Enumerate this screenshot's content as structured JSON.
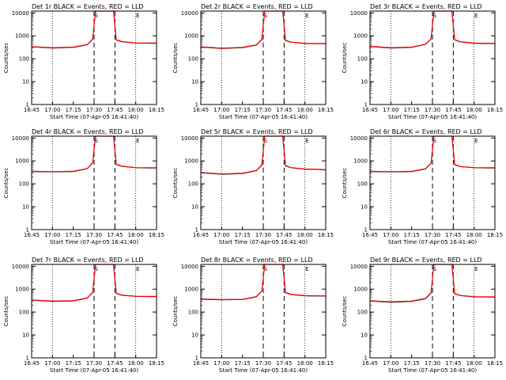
{
  "figure": {
    "background": "#ffffff",
    "colors": {
      "events": "#000000",
      "lld": "#ff0000",
      "axes": "#000000"
    }
  },
  "chart_data": [
    {
      "type": "line",
      "title": "Det 1r BLACK = Events, RED = LLD",
      "xlabel": "Start Time (07-Apr-05 16:41:40)",
      "ylabel": "Counts/sec",
      "yscale": "log",
      "ylim": [
        1,
        12000
      ],
      "xlim": [
        "16:45",
        "18:15"
      ],
      "x_ticks": [
        "16:45",
        "17:00",
        "17:15",
        "17:30",
        "17:45",
        "18:00",
        "18:15"
      ],
      "y_ticks": [
        "1",
        "10",
        "100",
        "1000",
        "10000"
      ],
      "grid": "dotted vertical lines at 17:00, 18:00",
      "markers": [
        {
          "label": "S",
          "at": "17:32"
        },
        {
          "label": "E",
          "at": "18:02"
        }
      ],
      "vlines_dashed": [
        "17:30",
        "17:45"
      ],
      "series": [
        {
          "name": "Events",
          "x": [
            "16:45",
            "17:00",
            "17:15",
            "17:25",
            "17:29",
            "17:31",
            "17:44",
            "17:46",
            "17:50",
            "18:00",
            "18:10",
            "18:15"
          ],
          "y": [
            330,
            290,
            310,
            400,
            700,
            12000,
            12000,
            650,
            550,
            480,
            470,
            470
          ]
        },
        {
          "name": "LLD",
          "x": [
            "16:45",
            "17:00",
            "17:15",
            "17:25",
            "17:29",
            "17:31",
            "17:44",
            "17:46",
            "17:50",
            "18:00",
            "18:10",
            "18:15"
          ],
          "y": [
            340,
            300,
            320,
            410,
            720,
            12000,
            12000,
            670,
            560,
            490,
            480,
            480
          ]
        }
      ]
    },
    {
      "type": "line",
      "title": "Det 2r BLACK = Events, RED = LLD",
      "xlabel": "Start Time (07-Apr-05 16:41:40)",
      "ylabel": "Counts/sec",
      "yscale": "log",
      "ylim": [
        1,
        12000
      ],
      "xlim": [
        "16:45",
        "18:15"
      ],
      "x_ticks": [
        "16:45",
        "17:00",
        "17:15",
        "17:30",
        "17:45",
        "18:00",
        "18:15"
      ],
      "y_ticks": [
        "1",
        "10",
        "100",
        "1000",
        "10000"
      ],
      "grid": "dotted vertical lines at 17:00, 18:00",
      "markers": [
        {
          "label": "S",
          "at": "17:32"
        },
        {
          "label": "E",
          "at": "18:02"
        }
      ],
      "vlines_dashed": [
        "17:30",
        "17:45"
      ],
      "series": [
        {
          "name": "Events",
          "x": [
            "16:45",
            "17:00",
            "17:15",
            "17:25",
            "17:29",
            "17:31",
            "17:44",
            "17:46",
            "17:50",
            "18:00",
            "18:10",
            "18:15"
          ],
          "y": [
            320,
            280,
            300,
            390,
            680,
            12000,
            12000,
            620,
            520,
            460,
            450,
            450
          ]
        },
        {
          "name": "LLD",
          "x": [
            "16:45",
            "17:00",
            "17:15",
            "17:25",
            "17:29",
            "17:31",
            "17:44",
            "17:46",
            "17:50",
            "18:00",
            "18:10",
            "18:15"
          ],
          "y": [
            330,
            290,
            310,
            400,
            700,
            12000,
            12000,
            640,
            530,
            470,
            460,
            460
          ]
        }
      ]
    },
    {
      "type": "line",
      "title": "Det 3r BLACK = Events, RED = LLD",
      "xlabel": "Start Time (07-Apr-05 16:41:40)",
      "ylabel": "Counts/sec",
      "yscale": "log",
      "ylim": [
        1,
        12000
      ],
      "xlim": [
        "16:45",
        "18:15"
      ],
      "x_ticks": [
        "16:45",
        "17:00",
        "17:15",
        "17:30",
        "17:45",
        "18:00",
        "18:15"
      ],
      "y_ticks": [
        "1",
        "10",
        "100",
        "1000",
        "10000"
      ],
      "grid": "dotted vertical lines at 17:00, 18:00",
      "markers": [
        {
          "label": "S",
          "at": "17:32"
        },
        {
          "label": "E",
          "at": "18:02"
        }
      ],
      "vlines_dashed": [
        "17:30",
        "17:45"
      ],
      "series": [
        {
          "name": "Events",
          "x": [
            "16:45",
            "17:00",
            "17:15",
            "17:25",
            "17:29",
            "17:31",
            "17:44",
            "17:46",
            "17:50",
            "18:00",
            "18:10",
            "18:15"
          ],
          "y": [
            340,
            290,
            310,
            420,
            720,
            12000,
            12000,
            660,
            540,
            470,
            460,
            460
          ]
        },
        {
          "name": "LLD",
          "x": [
            "16:45",
            "17:00",
            "17:15",
            "17:25",
            "17:29",
            "17:31",
            "17:44",
            "17:46",
            "17:50",
            "18:00",
            "18:10",
            "18:15"
          ],
          "y": [
            350,
            300,
            320,
            430,
            740,
            12000,
            12000,
            680,
            550,
            480,
            470,
            470
          ]
        }
      ]
    },
    {
      "type": "line",
      "title": "Det 4r BLACK = Events, RED = LLD",
      "xlabel": "Start Time (07-Apr-05 16:41:40)",
      "ylabel": "Counts/sec",
      "yscale": "log",
      "ylim": [
        1,
        12000
      ],
      "xlim": [
        "16:45",
        "18:15"
      ],
      "x_ticks": [
        "16:45",
        "17:00",
        "17:15",
        "17:30",
        "17:45",
        "18:00",
        "18:15"
      ],
      "y_ticks": [
        "1",
        "10",
        "100",
        "1000",
        "10000"
      ],
      "grid": "dotted vertical lines at 17:00, 18:00",
      "markers": [
        {
          "label": "S",
          "at": "17:32"
        },
        {
          "label": "E",
          "at": "18:02"
        }
      ],
      "vlines_dashed": [
        "17:30",
        "17:45"
      ],
      "series": [
        {
          "name": "Events",
          "x": [
            "16:45",
            "17:00",
            "17:15",
            "17:25",
            "17:29",
            "17:31",
            "17:44",
            "17:46",
            "17:50",
            "18:00",
            "18:10",
            "18:15"
          ],
          "y": [
            340,
            330,
            340,
            450,
            800,
            12000,
            12000,
            700,
            580,
            500,
            490,
            490
          ]
        },
        {
          "name": "LLD",
          "x": [
            "16:45",
            "17:00",
            "17:15",
            "17:25",
            "17:29",
            "17:31",
            "17:44",
            "17:46",
            "17:50",
            "18:00",
            "18:10",
            "18:15"
          ],
          "y": [
            350,
            340,
            350,
            460,
            820,
            12000,
            12000,
            720,
            590,
            510,
            500,
            500
          ]
        }
      ]
    },
    {
      "type": "line",
      "title": "Det 5r BLACK = Events, RED = LLD",
      "xlabel": "Start Time (07-Apr-05 16:41:40)",
      "ylabel": "Counts/sec",
      "yscale": "log",
      "ylim": [
        1,
        12000
      ],
      "xlim": [
        "16:45",
        "18:15"
      ],
      "x_ticks": [
        "16:45",
        "17:00",
        "17:15",
        "17:30",
        "17:45",
        "18:00",
        "18:15"
      ],
      "y_ticks": [
        "1",
        "10",
        "100",
        "1000",
        "10000"
      ],
      "grid": "dotted vertical lines at 17:00, 18:00",
      "markers": [
        {
          "label": "S",
          "at": "17:32"
        },
        {
          "label": "E",
          "at": "18:02"
        }
      ],
      "vlines_dashed": [
        "17:30",
        "17:45"
      ],
      "series": [
        {
          "name": "Events",
          "x": [
            "16:45",
            "17:00",
            "17:15",
            "17:25",
            "17:29",
            "17:31",
            "17:44",
            "17:46",
            "17:50",
            "18:00",
            "18:10",
            "18:15"
          ],
          "y": [
            300,
            260,
            280,
            370,
            650,
            12000,
            12000,
            600,
            500,
            430,
            420,
            400
          ]
        },
        {
          "name": "LLD",
          "x": [
            "16:45",
            "17:00",
            "17:15",
            "17:25",
            "17:29",
            "17:31",
            "17:44",
            "17:46",
            "17:50",
            "18:00",
            "18:10",
            "18:15"
          ],
          "y": [
            310,
            270,
            290,
            380,
            670,
            12000,
            12000,
            620,
            510,
            440,
            430,
            410
          ]
        }
      ]
    },
    {
      "type": "line",
      "title": "Det 6r BLACK = Events, RED = LLD",
      "xlabel": "Start Time (07-Apr-05 16:41:40)",
      "ylabel": "Counts/sec",
      "yscale": "log",
      "ylim": [
        1,
        12000
      ],
      "xlim": [
        "16:45",
        "18:15"
      ],
      "x_ticks": [
        "16:45",
        "17:00",
        "17:15",
        "17:30",
        "17:45",
        "18:00",
        "18:15"
      ],
      "y_ticks": [
        "1",
        "10",
        "100",
        "1000",
        "10000"
      ],
      "grid": "dotted vertical lines at 17:00, 18:00",
      "markers": [
        {
          "label": "S",
          "at": "17:32"
        },
        {
          "label": "E",
          "at": "18:02"
        }
      ],
      "vlines_dashed": [
        "17:30",
        "17:45"
      ],
      "series": [
        {
          "name": "Events",
          "x": [
            "16:45",
            "17:00",
            "17:15",
            "17:25",
            "17:29",
            "17:31",
            "17:44",
            "17:46",
            "17:50",
            "18:00",
            "18:10",
            "18:15"
          ],
          "y": [
            340,
            330,
            340,
            440,
            780,
            12000,
            12000,
            680,
            560,
            500,
            490,
            490
          ]
        },
        {
          "name": "LLD",
          "x": [
            "16:45",
            "17:00",
            "17:15",
            "17:25",
            "17:29",
            "17:31",
            "17:44",
            "17:46",
            "17:50",
            "18:00",
            "18:10",
            "18:15"
          ],
          "y": [
            350,
            340,
            350,
            450,
            800,
            12000,
            12000,
            700,
            570,
            510,
            500,
            500
          ]
        }
      ]
    },
    {
      "type": "line",
      "title": "Det 7r BLACK = Events, RED = LLD",
      "xlabel": "Start Time (07-Apr-05 16:41:40)",
      "ylabel": "Counts/sec",
      "yscale": "log",
      "ylim": [
        1,
        12000
      ],
      "xlim": [
        "16:45",
        "18:15"
      ],
      "x_ticks": [
        "16:45",
        "17:00",
        "17:15",
        "17:30",
        "17:45",
        "18:00",
        "18:15"
      ],
      "y_ticks": [
        "1",
        "10",
        "100",
        "1000",
        "10000"
      ],
      "grid": "dotted vertical lines at 17:00, 18:00",
      "markers": [
        {
          "label": "S",
          "at": "17:32"
        },
        {
          "label": "E",
          "at": "18:02"
        }
      ],
      "vlines_dashed": [
        "17:30",
        "17:45"
      ],
      "series": [
        {
          "name": "Events",
          "x": [
            "16:45",
            "17:00",
            "17:15",
            "17:25",
            "17:29",
            "17:31",
            "17:44",
            "17:46",
            "17:50",
            "18:00",
            "18:10",
            "18:15"
          ],
          "y": [
            330,
            290,
            300,
            400,
            700,
            12000,
            12000,
            640,
            540,
            480,
            470,
            470
          ]
        },
        {
          "name": "LLD",
          "x": [
            "16:45",
            "17:00",
            "17:15",
            "17:25",
            "17:29",
            "17:31",
            "17:44",
            "17:46",
            "17:50",
            "18:00",
            "18:10",
            "18:15"
          ],
          "y": [
            340,
            300,
            310,
            410,
            720,
            12000,
            12000,
            660,
            550,
            490,
            480,
            480
          ]
        }
      ]
    },
    {
      "type": "line",
      "title": "Det 8r BLACK = Events, RED = LLD",
      "xlabel": "Start Time (07-Apr-05 16:41:40)",
      "ylabel": "Counts/sec",
      "yscale": "log",
      "ylim": [
        1,
        12000
      ],
      "xlim": [
        "16:45",
        "18:15"
      ],
      "x_ticks": [
        "16:45",
        "17:00",
        "17:15",
        "17:30",
        "17:45",
        "18:00",
        "18:15"
      ],
      "y_ticks": [
        "1",
        "10",
        "100",
        "1000",
        "10000"
      ],
      "grid": "dotted vertical lines at 17:00, 18:00",
      "markers": [
        {
          "label": "S",
          "at": "17:32"
        },
        {
          "label": "E",
          "at": "18:02"
        }
      ],
      "vlines_dashed": [
        "17:30",
        "17:45"
      ],
      "series": [
        {
          "name": "Events",
          "x": [
            "16:45",
            "17:00",
            "17:15",
            "17:25",
            "17:29",
            "17:31",
            "17:44",
            "17:46",
            "17:50",
            "18:00",
            "18:10",
            "18:15"
          ],
          "y": [
            360,
            340,
            350,
            460,
            820,
            12000,
            12000,
            700,
            580,
            510,
            500,
            500
          ]
        },
        {
          "name": "LLD",
          "x": [
            "16:45",
            "17:00",
            "17:15",
            "17:25",
            "17:29",
            "17:31",
            "17:44",
            "17:46",
            "17:50",
            "18:00",
            "18:10",
            "18:15"
          ],
          "y": [
            370,
            350,
            360,
            470,
            840,
            12000,
            12000,
            720,
            590,
            520,
            510,
            510
          ]
        }
      ]
    },
    {
      "type": "line",
      "title": "Det 9r BLACK = Events, RED = LLD",
      "xlabel": "Start Time (07-Apr-05 16:41:40)",
      "ylabel": "Counts/sec",
      "yscale": "log",
      "ylim": [
        1,
        12000
      ],
      "xlim": [
        "16:45",
        "18:15"
      ],
      "x_ticks": [
        "16:45",
        "17:00",
        "17:15",
        "17:30",
        "17:45",
        "18:00",
        "18:15"
      ],
      "y_ticks": [
        "1",
        "10",
        "100",
        "1000",
        "10000"
      ],
      "grid": "dotted vertical lines at 17:00, 18:00",
      "markers": [
        {
          "label": "S",
          "at": "17:32"
        },
        {
          "label": "E",
          "at": "18:02"
        }
      ],
      "vlines_dashed": [
        "17:30",
        "17:45"
      ],
      "series": [
        {
          "name": "Events",
          "x": [
            "16:45",
            "17:00",
            "17:15",
            "17:25",
            "17:29",
            "17:31",
            "17:44",
            "17:46",
            "17:50",
            "18:00",
            "18:10",
            "18:15"
          ],
          "y": [
            300,
            270,
            290,
            380,
            680,
            12000,
            12000,
            620,
            520,
            460,
            450,
            450
          ]
        },
        {
          "name": "LLD",
          "x": [
            "16:45",
            "17:00",
            "17:15",
            "17:25",
            "17:29",
            "17:31",
            "17:44",
            "17:46",
            "17:50",
            "18:00",
            "18:10",
            "18:15"
          ],
          "y": [
            310,
            280,
            300,
            390,
            700,
            12000,
            12000,
            640,
            530,
            470,
            460,
            460
          ]
        }
      ]
    }
  ]
}
